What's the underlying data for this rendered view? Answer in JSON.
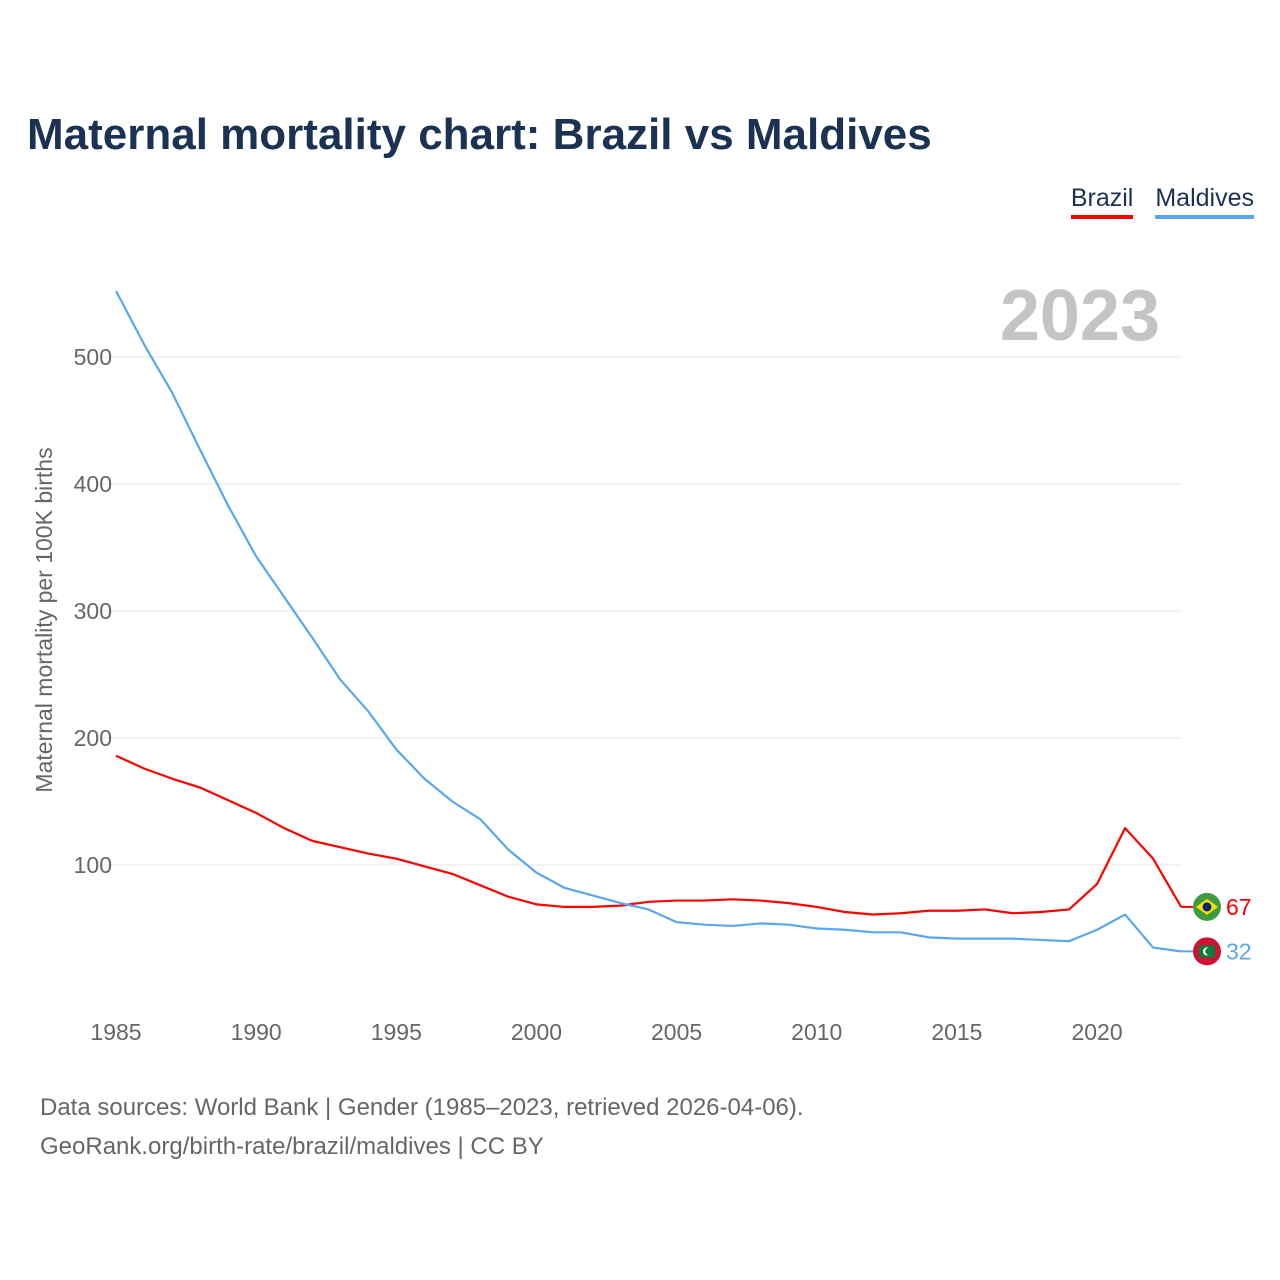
{
  "title": "Maternal mortality chart: Brazil vs Maldives",
  "footer": {
    "line1": "Data sources: World Bank | Gender (1985–2023, retrieved 2026-04-06).",
    "line2": "GeoRank.org/birth-rate/brazil/maldives | CC BY"
  },
  "chart_data": {
    "type": "line",
    "title": "Maternal mortality chart: Brazil vs Maldives",
    "ylabel": "Maternal mortality per 100K births",
    "xlabel": "",
    "year_label": "2023",
    "ylim": [
      0,
      560
    ],
    "xlim": [
      1985,
      2023
    ],
    "yticks": [
      "100",
      "200",
      "300",
      "400",
      "500"
    ],
    "xticks": [
      "1985",
      "1990",
      "1995",
      "2000",
      "2005",
      "2010",
      "2015",
      "2020"
    ],
    "legend_position": "top-right",
    "x": [
      1985,
      1986,
      1987,
      1988,
      1989,
      1990,
      1991,
      1992,
      1993,
      1994,
      1995,
      1996,
      1997,
      1998,
      1999,
      2000,
      2001,
      2002,
      2003,
      2004,
      2005,
      2006,
      2007,
      2008,
      2009,
      2010,
      2011,
      2012,
      2013,
      2014,
      2015,
      2016,
      2017,
      2018,
      2019,
      2020,
      2021,
      2022,
      2023
    ],
    "series": [
      {
        "name": "Brazil",
        "color": "#ff0000",
        "end_label": "67",
        "values": [
          186,
          176,
          168,
          161,
          151,
          141,
          129,
          119,
          114,
          109,
          105,
          99,
          93,
          84,
          75,
          69,
          67,
          67,
          68,
          71,
          72,
          72,
          73,
          72,
          70,
          67,
          63,
          61,
          62,
          64,
          64,
          65,
          62,
          63,
          65,
          85,
          129,
          105,
          67
        ]
      },
      {
        "name": "Maldives",
        "color": "#5aa7ef",
        "end_label": "32",
        "values": [
          552,
          510,
          472,
          427,
          383,
          343,
          311,
          279,
          246,
          221,
          191,
          168,
          150,
          136,
          112,
          94,
          82,
          76,
          70,
          65,
          55,
          53,
          52,
          54,
          53,
          50,
          49,
          47,
          47,
          43,
          42,
          42,
          42,
          41,
          40,
          49,
          61,
          35,
          32
        ]
      }
    ]
  }
}
